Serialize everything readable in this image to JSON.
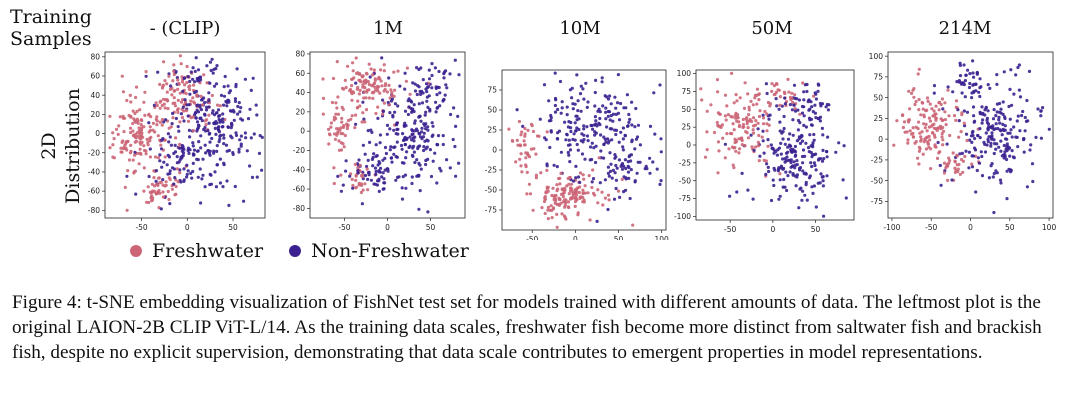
{
  "row_label": {
    "line1": "Training",
    "line2": "Samples"
  },
  "y_label": {
    "line1": "2D",
    "line2": "Distribution"
  },
  "columns": [
    "- (CLIP)",
    "1M",
    "10M",
    "50M",
    "214M"
  ],
  "legend": [
    {
      "name": "Freshwater",
      "color": "#cc6677"
    },
    {
      "name": "Non-Freshwater",
      "color": "#3b2190"
    }
  ],
  "caption": {
    "label": "Figure 4:",
    "text": "t-SNE embedding visualization of FishNet test set for models trained with different amounts of data. The leftmost plot is the original LAION-2B CLIP ViT-L/14. As the training data scales, freshwater fish become more distinct from saltwater fish and brackish fish, despite no explicit supervision, demonstrating that data scale contributes to emergent properties in model representations."
  },
  "chart_data": [
    {
      "type": "scatter",
      "title": "- (CLIP)",
      "xticks": [
        -50,
        0,
        50
      ],
      "yticks": [
        80,
        60,
        40,
        20,
        0,
        -20,
        -40,
        -60,
        -80
      ],
      "xlim": [
        -90,
        85
      ],
      "ylim": [
        -88,
        85
      ],
      "series": [
        {
          "name": "Freshwater",
          "clusters": [
            [
              -55,
              0,
              22,
              25,
              140
            ],
            [
              -5,
              35,
              22,
              22,
              120
            ],
            [
              -30,
              -55,
              20,
              15,
              60
            ]
          ]
        },
        {
          "name": "Non-Freshwater",
          "clusters": [
            [
              30,
              10,
              35,
              40,
              220
            ],
            [
              -5,
              -30,
              30,
              25,
              90
            ],
            [
              10,
              60,
              25,
              15,
              40
            ]
          ]
        }
      ]
    },
    {
      "type": "scatter",
      "title": "1M",
      "xticks": [
        -50,
        0,
        50
      ],
      "yticks": [
        80,
        60,
        40,
        20,
        0,
        -20,
        -40,
        -60,
        -80
      ],
      "xlim": [
        -90,
        90
      ],
      "ylim": [
        -90,
        82
      ],
      "series": [
        {
          "name": "Freshwater",
          "clusters": [
            [
              -20,
              45,
              30,
              18,
              120
            ],
            [
              -55,
              5,
              15,
              20,
              50
            ],
            [
              -30,
              -50,
              15,
              15,
              30
            ]
          ]
        },
        {
          "name": "Non-Freshwater",
          "clusters": [
            [
              30,
              0,
              35,
              35,
              200
            ],
            [
              -10,
              -40,
              25,
              25,
              80
            ],
            [
              50,
              50,
              20,
              15,
              40
            ]
          ]
        }
      ]
    },
    {
      "type": "scatter",
      "title": "10M",
      "xticks": [
        -50,
        0,
        50,
        100
      ],
      "yticks": [
        75,
        50,
        25,
        0,
        -25,
        -50,
        -75
      ],
      "xlim": [
        -85,
        105
      ],
      "ylim": [
        -100,
        100
      ],
      "series": [
        {
          "name": "Freshwater",
          "clusters": [
            [
              -10,
              -55,
              30,
              20,
              150
            ],
            [
              -55,
              5,
              15,
              25,
              40
            ]
          ]
        },
        {
          "name": "Non-Freshwater",
          "clusters": [
            [
              20,
              25,
              45,
              45,
              240
            ],
            [
              60,
              -30,
              20,
              20,
              40
            ]
          ]
        }
      ]
    },
    {
      "type": "scatter",
      "title": "50M",
      "xticks": [
        -50,
        0,
        50
      ],
      "yticks": [
        100,
        75,
        50,
        25,
        0,
        -25,
        -50,
        -75,
        -100
      ],
      "xlim": [
        -90,
        95
      ],
      "ylim": [
        -105,
        105
      ],
      "series": [
        {
          "name": "Freshwater",
          "clusters": [
            [
              -40,
              25,
              30,
              35,
              130
            ],
            [
              10,
              70,
              20,
              15,
              40
            ]
          ]
        },
        {
          "name": "Non-Freshwater",
          "clusters": [
            [
              30,
              -20,
              35,
              45,
              200
            ],
            [
              40,
              60,
              25,
              20,
              60
            ]
          ]
        }
      ]
    },
    {
      "type": "scatter",
      "title": "214M",
      "xticks": [
        -100,
        -50,
        0,
        50,
        100
      ],
      "yticks": [
        100,
        75,
        50,
        25,
        0,
        -25,
        -50,
        -75
      ],
      "xlim": [
        -105,
        105
      ],
      "ylim": [
        -95,
        105
      ],
      "series": [
        {
          "name": "Freshwater",
          "clusters": [
            [
              -55,
              15,
              28,
              30,
              150
            ],
            [
              -20,
              -35,
              15,
              15,
              30
            ]
          ]
        },
        {
          "name": "Non-Freshwater",
          "clusters": [
            [
              30,
              10,
              35,
              45,
              220
            ],
            [
              0,
              70,
              20,
              15,
              40
            ]
          ]
        }
      ]
    }
  ]
}
